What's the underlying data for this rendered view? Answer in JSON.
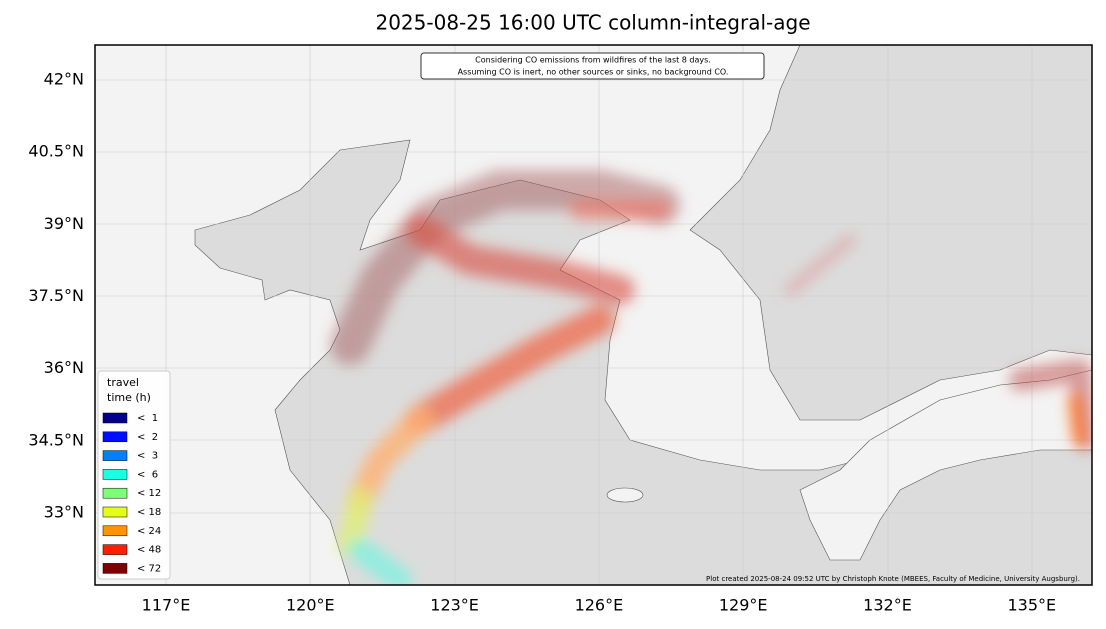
{
  "title": "2025-08-25 16:00 UTC column-integral-age",
  "note": [
    "Considering CO emissions from wildfires of the last 8 days.",
    "Assuming CO is inert, no other sources or sinks, no background CO."
  ],
  "lat_labels": [
    "42°N",
    "40.5°N",
    "39°N",
    "37.5°N",
    "36°N",
    "34.5°N",
    "33°N"
  ],
  "lon_labels": [
    "117°E",
    "120°E",
    "123°E",
    "126°E",
    "129°E",
    "132°E",
    "135°E"
  ],
  "legend": {
    "title": [
      "travel",
      "time (h)"
    ],
    "items": [
      {
        "label": "<  1",
        "color": "#00008b"
      },
      {
        "label": "<  2",
        "color": "#0010ff"
      },
      {
        "label": "<  3",
        "color": "#0080ff"
      },
      {
        "label": "<  6",
        "color": "#1affe4"
      },
      {
        "label": "< 12",
        "color": "#7dff7a"
      },
      {
        "label": "< 18",
        "color": "#e4ff13"
      },
      {
        "label": "< 24",
        "color": "#ff9400"
      },
      {
        "label": "< 48",
        "color": "#ff1e00"
      },
      {
        "label": "< 72",
        "color": "#800000"
      }
    ]
  },
  "credit": "Plot created 2025-08-24 09:52 UTC by Christoph Knote (MBEES, Faculty of Medicine, University Augsburg)."
}
